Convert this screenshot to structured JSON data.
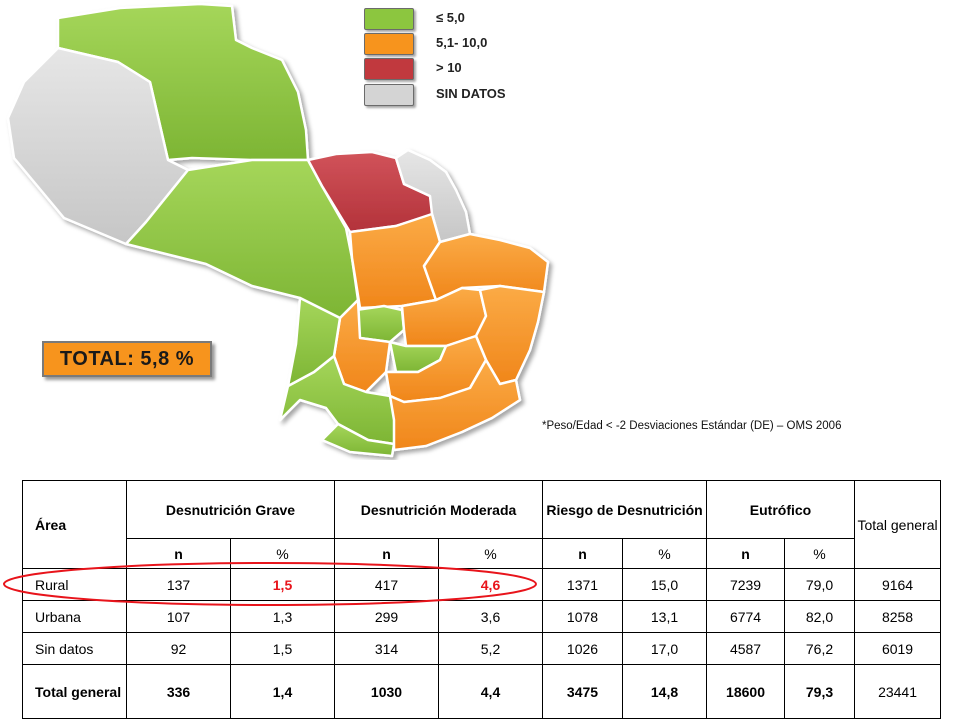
{
  "legend": [
    {
      "label": "≤ 5,0",
      "color": "#8cc63f",
      "icon": "green-swatch"
    },
    {
      "label": "5,1- 10,0",
      "color": "#f7941d",
      "icon": "orange-swatch"
    },
    {
      "label": "> 10",
      "color": "#c1393e",
      "icon": "red-swatch"
    },
    {
      "label": "SIN DATOS",
      "color": "#d4d4d4",
      "icon": "gray-swatch"
    }
  ],
  "map": {
    "total_label": "TOTAL: 5,8 %",
    "colors": {
      "green": "#8cc63f",
      "orange": "#f7941d",
      "red": "#c1393e",
      "gray": "#d4d4d4"
    }
  },
  "footnote": "*Peso/Edad < -2 Desviaciones Estándar (DE) – OMS 2006",
  "table": {
    "col_area": "Área",
    "group_headers": [
      "Desnutrición Grave",
      "Desnutrición Moderada",
      "Riesgo de Desnutrición",
      "Eutrófico"
    ],
    "col_total": "Total general",
    "sub_n": "n",
    "sub_pct": "%",
    "rows": [
      {
        "area": "Rural",
        "values": [
          "137",
          "1,5",
          "417",
          "4,6",
          "1371",
          "15,0",
          "7239",
          "79,0"
        ],
        "total": "9164"
      },
      {
        "area": "Urbana",
        "values": [
          "107",
          "1,3",
          "299",
          "3,6",
          "1078",
          "13,1",
          "6774",
          "82,0"
        ],
        "total": "8258"
      },
      {
        "area": "Sin datos",
        "values": [
          "92",
          "1,5",
          "314",
          "5,2",
          "1026",
          "17,0",
          "4587",
          "76,2"
        ],
        "total": "6019"
      },
      {
        "area": "Total general",
        "values": [
          "336",
          "1,4",
          "1030",
          "4,4",
          "3475",
          "14,8",
          "18600",
          "79,3"
        ],
        "total": "23441"
      }
    ],
    "highlight_color": "#e8141b"
  }
}
